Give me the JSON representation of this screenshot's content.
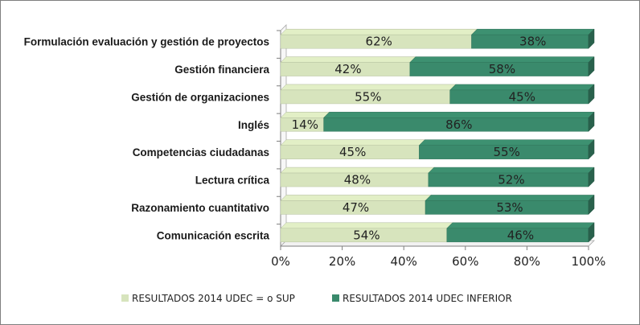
{
  "chart_data": {
    "type": "bar",
    "orientation": "horizontal",
    "stacked": true,
    "percent_stacked": true,
    "categories": [
      "Formulación evaluación y gestión de proyectos",
      "Gestión financiera",
      "Gestión de organizaciones",
      "Inglés",
      "Competencias ciudadanas",
      "Lectura crítica",
      "Razonamiento cuantitativo",
      "Comunicación escrita"
    ],
    "series": [
      {
        "name": "RESULTADOS 2014 UDEC = o SUP",
        "color": "#d7e4bd",
        "values": [
          62,
          42,
          55,
          14,
          45,
          48,
          47,
          54
        ],
        "labels": [
          "62%",
          "42%",
          "55%",
          "14%",
          "45%",
          "48%",
          "47%",
          "54%"
        ]
      },
      {
        "name": "RESULTADOS 2014 UDEC INFERIOR",
        "color": "#3a8a6c",
        "values": [
          38,
          58,
          45,
          86,
          55,
          52,
          53,
          46
        ],
        "labels": [
          "38%",
          "58%",
          "45%",
          "86%",
          "55%",
          "52%",
          "53%",
          "46%"
        ]
      }
    ],
    "xlim": [
      0,
      100
    ],
    "x_ticks": [
      "0%",
      "20%",
      "40%",
      "60%",
      "80%",
      "100%"
    ],
    "xlabel": "",
    "ylabel": "",
    "title": "",
    "grid": false,
    "legend_position": "bottom",
    "three_d": true
  }
}
